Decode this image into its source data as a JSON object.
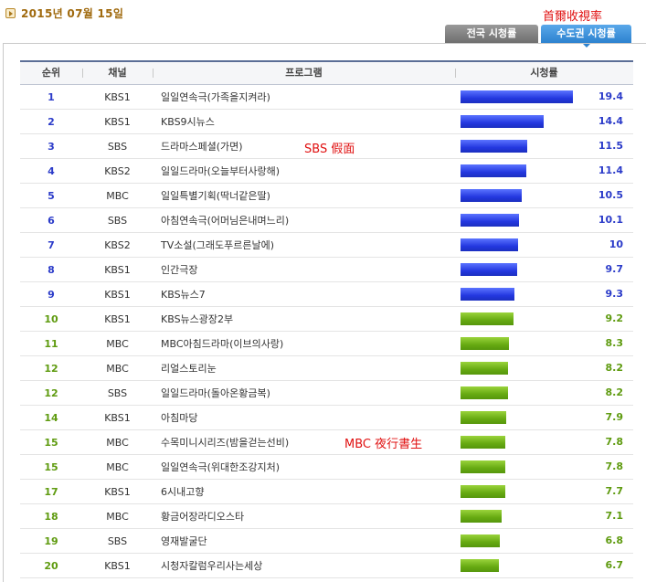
{
  "header": {
    "date": "2015년 07월 15일"
  },
  "annotations": {
    "top": "首爾收視率",
    "sbs": "SBS 假面",
    "mbc": "MBC 夜行書生"
  },
  "tabs": [
    {
      "label": "전국 시청률"
    },
    {
      "label": "수도권 시청률"
    }
  ],
  "table": {
    "columns": {
      "rank": "순위",
      "channel": "채널",
      "program": "프로그램",
      "rating": "시청률"
    },
    "rating_max": 19.4,
    "rows": [
      {
        "rank": "1",
        "channel": "KBS1",
        "program": "일일연속극(가족을지켜라)",
        "rating": "19.4",
        "tier": "blue"
      },
      {
        "rank": "2",
        "channel": "KBS1",
        "program": "KBS9시뉴스",
        "rating": "14.4",
        "tier": "blue"
      },
      {
        "rank": "3",
        "channel": "SBS",
        "program": "드라마스페셜(가면)",
        "rating": "11.5",
        "tier": "blue"
      },
      {
        "rank": "4",
        "channel": "KBS2",
        "program": "일일드라마(오늘부터사랑해)",
        "rating": "11.4",
        "tier": "blue"
      },
      {
        "rank": "5",
        "channel": "MBC",
        "program": "일일특별기획(딱너같은딸)",
        "rating": "10.5",
        "tier": "blue"
      },
      {
        "rank": "6",
        "channel": "SBS",
        "program": "아침연속극(어머님은내며느리)",
        "rating": "10.1",
        "tier": "blue"
      },
      {
        "rank": "7",
        "channel": "KBS2",
        "program": "TV소설(그래도푸르른날에)",
        "rating": "10",
        "tier": "blue"
      },
      {
        "rank": "8",
        "channel": "KBS1",
        "program": "인간극장",
        "rating": "9.7",
        "tier": "blue"
      },
      {
        "rank": "9",
        "channel": "KBS1",
        "program": "KBS뉴스7",
        "rating": "9.3",
        "tier": "blue"
      },
      {
        "rank": "10",
        "channel": "KBS1",
        "program": "KBS뉴스광장2부",
        "rating": "9.2",
        "tier": "green"
      },
      {
        "rank": "11",
        "channel": "MBC",
        "program": "MBC아침드라마(이브의사랑)",
        "rating": "8.3",
        "tier": "green"
      },
      {
        "rank": "12",
        "channel": "MBC",
        "program": "리얼스토리눈",
        "rating": "8.2",
        "tier": "green"
      },
      {
        "rank": "12",
        "channel": "SBS",
        "program": "일일드라마(돌아온황금복)",
        "rating": "8.2",
        "tier": "green"
      },
      {
        "rank": "14",
        "channel": "KBS1",
        "program": "아침마당",
        "rating": "7.9",
        "tier": "green"
      },
      {
        "rank": "15",
        "channel": "MBC",
        "program": "수목미니시리즈(밤을걷는선비)",
        "rating": "7.8",
        "tier": "green"
      },
      {
        "rank": "15",
        "channel": "MBC",
        "program": "일일연속극(위대한조강지처)",
        "rating": "7.8",
        "tier": "green"
      },
      {
        "rank": "17",
        "channel": "KBS1",
        "program": "6시내고향",
        "rating": "7.7",
        "tier": "green"
      },
      {
        "rank": "18",
        "channel": "MBC",
        "program": "황금어장라디오스타",
        "rating": "7.1",
        "tier": "green"
      },
      {
        "rank": "19",
        "channel": "SBS",
        "program": "영재발굴단",
        "rating": "6.8",
        "tier": "green"
      },
      {
        "rank": "20",
        "channel": "KBS1",
        "program": "시청자칼럼우리사는세상",
        "rating": "6.7",
        "tier": "green"
      }
    ]
  }
}
